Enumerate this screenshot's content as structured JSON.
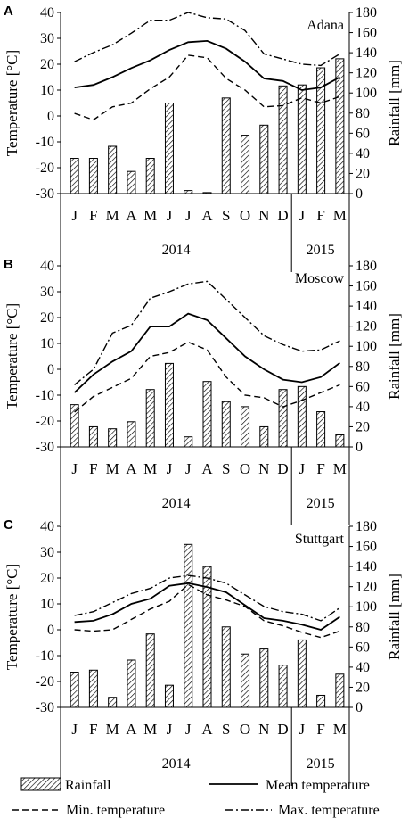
{
  "months": [
    "J",
    "F",
    "M",
    "A",
    "M",
    "J",
    "J",
    "A",
    "S",
    "O",
    "N",
    "D",
    "J",
    "F",
    "M"
  ],
  "years": [
    "2014",
    "2015"
  ],
  "temp_axis": {
    "label": "Temperature [°C]",
    "ticks": [
      "40",
      "30",
      "20",
      "10",
      "0",
      "-10",
      "-20",
      "-30"
    ],
    "min": -30,
    "max": 40
  },
  "rain_axis": {
    "label": "Rainfall [mm]",
    "ticks": [
      "180",
      "160",
      "140",
      "120",
      "100",
      "80",
      "60",
      "40",
      "20",
      "0"
    ],
    "min": 0,
    "max": 180
  },
  "legend": {
    "rainfall": "Rainfall",
    "mean": "Mean temperature",
    "min": "Min. temperature",
    "max": "Max. temperature"
  },
  "colors": {
    "line": "#000000",
    "bar_hatch": "#000000",
    "background": "#ffffff"
  },
  "chart_data": [
    {
      "panel": "A",
      "location": "Adana",
      "type": "bar+line",
      "rainfall": [
        35,
        35,
        47,
        22,
        35,
        90,
        3,
        1,
        95,
        58,
        68,
        107,
        108,
        125,
        134
      ],
      "mean_temp": [
        11,
        12,
        15,
        18.5,
        21.5,
        25.5,
        28.5,
        29,
        26,
        21,
        14.5,
        13.5,
        10,
        11,
        15
      ],
      "min_temp": [
        1,
        -1.5,
        3.5,
        5,
        10.5,
        15,
        23.5,
        22.5,
        14.5,
        10,
        3.5,
        4,
        7,
        5,
        7.5
      ],
      "max_temp": [
        21,
        24.5,
        27.5,
        32,
        37,
        37,
        40,
        38,
        37.5,
        33,
        24,
        22,
        20,
        19.5,
        24
      ]
    },
    {
      "panel": "B",
      "location": "Moscow",
      "type": "bar+line",
      "rainfall": [
        42,
        20,
        18,
        25,
        57,
        83,
        10,
        65,
        45,
        40,
        20,
        57,
        60,
        35,
        12
      ],
      "mean_temp": [
        -9,
        -2,
        3,
        7,
        16.5,
        16.5,
        21.5,
        19,
        12,
        5,
        0,
        -4,
        -5,
        -3,
        2.5
      ],
      "min_temp": [
        -16.5,
        -10.5,
        -7,
        -3.5,
        5,
        6.5,
        10.5,
        7.5,
        -3,
        -10,
        -11,
        -14.5,
        -12,
        -9,
        -6
      ],
      "max_temp": [
        -6,
        0,
        14,
        17,
        27.5,
        30,
        33,
        34,
        27,
        20,
        13,
        9.5,
        7,
        7.5,
        11
      ]
    },
    {
      "panel": "C",
      "location": "Stuttgart",
      "type": "bar+line",
      "rainfall": [
        35,
        37,
        10,
        47,
        73,
        22,
        162,
        140,
        80,
        53,
        58,
        42,
        67,
        12,
        33
      ],
      "mean_temp": [
        3,
        3.5,
        6,
        10,
        12,
        17,
        18,
        16.5,
        14.5,
        9.5,
        4.5,
        3.5,
        2,
        0,
        5
      ],
      "min_temp": [
        0,
        -0.5,
        0,
        4,
        8,
        11,
        17.5,
        13.5,
        11.5,
        9,
        3.5,
        1.5,
        -1,
        -3,
        -0.5
      ],
      "max_temp": [
        5.5,
        7,
        10.5,
        14,
        16,
        20,
        21,
        20,
        18,
        13.5,
        9,
        7,
        6,
        3.5,
        8.5
      ]
    }
  ]
}
